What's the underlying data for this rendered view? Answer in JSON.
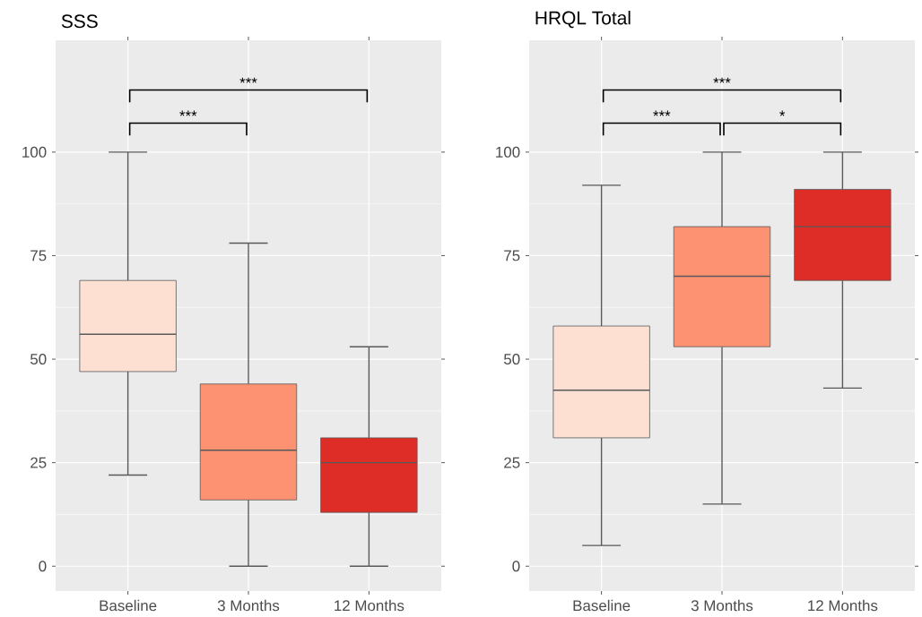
{
  "chart_data": [
    {
      "type": "box",
      "title": "SSS",
      "categories": [
        "Baseline",
        "3 Months",
        "12 Months"
      ],
      "colors": [
        "#fde0d2",
        "#fc9272",
        "#de2d26"
      ],
      "boxes": [
        {
          "low": 22,
          "q1": 47,
          "median": 56,
          "q3": 69,
          "high": 100
        },
        {
          "low": 0,
          "q1": 16,
          "median": 28,
          "q3": 44,
          "high": 78
        },
        {
          "low": 0,
          "q1": 13,
          "median": 25,
          "q3": 31,
          "high": 53
        }
      ],
      "ylim": [
        -6,
        127
      ],
      "yticks": [
        0,
        25,
        50,
        75,
        100
      ],
      "grid": true,
      "annotations": [
        "***",
        "***"
      ]
    },
    {
      "type": "box",
      "title": "HRQL Total",
      "categories": [
        "Baseline",
        "3 Months",
        "12 Months"
      ],
      "colors": [
        "#fde0d2",
        "#fc9272",
        "#de2d26"
      ],
      "boxes": [
        {
          "low": 5,
          "q1": 31,
          "median": 42.5,
          "q3": 58,
          "high": 92
        },
        {
          "low": 15,
          "q1": 53,
          "median": 70,
          "q3": 82,
          "high": 100
        },
        {
          "low": 43,
          "q1": 69,
          "median": 82,
          "q3": 91,
          "high": 100
        }
      ],
      "ylim": [
        -6,
        127
      ],
      "yticks": [
        0,
        25,
        50,
        75,
        100
      ],
      "grid": true,
      "annotations": [
        "***",
        "***",
        "*"
      ]
    }
  ]
}
